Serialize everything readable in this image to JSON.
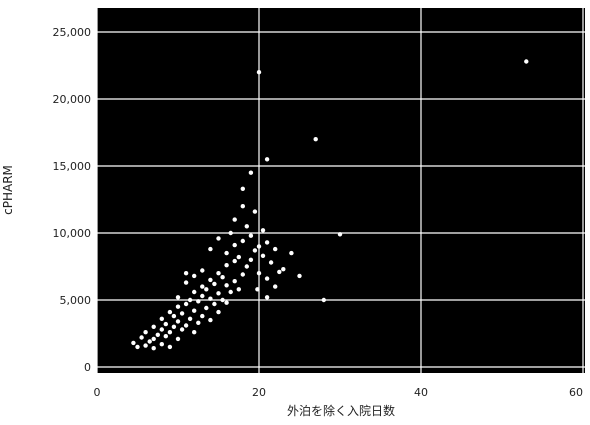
{
  "chart_data": {
    "type": "scatter",
    "title": "",
    "xlabel": "外泊を除く入院日数",
    "ylabel": "cPHARM",
    "xlim": [
      0,
      60
    ],
    "ylim": [
      0,
      25000
    ],
    "xticks": [
      0,
      20,
      40,
      60
    ],
    "xtick_labels": [
      "0",
      "20",
      "40",
      "60"
    ],
    "yticks": [
      0,
      5000,
      10000,
      15000,
      20000,
      25000
    ],
    "ytick_labels": [
      "0",
      "5,000",
      "10,000",
      "15,000",
      "20,000",
      "25,000"
    ],
    "grid": true,
    "colors": {
      "plot_background": "#000000",
      "gridline": "#ffffff",
      "point": "#ffffff"
    },
    "series": [
      {
        "points": [
          [
            4.5,
            1800
          ],
          [
            5,
            1500
          ],
          [
            5.5,
            2200
          ],
          [
            6,
            1600
          ],
          [
            6,
            2600
          ],
          [
            6.5,
            1900
          ],
          [
            7,
            1400
          ],
          [
            7,
            2100
          ],
          [
            7,
            3000
          ],
          [
            7.5,
            2400
          ],
          [
            8,
            1700
          ],
          [
            8,
            2800
          ],
          [
            8,
            3600
          ],
          [
            8.5,
            2300
          ],
          [
            8.5,
            3200
          ],
          [
            9,
            1500
          ],
          [
            9,
            2600
          ],
          [
            9,
            4100
          ],
          [
            9.5,
            3000
          ],
          [
            9.5,
            3800
          ],
          [
            10,
            2100
          ],
          [
            10,
            3400
          ],
          [
            10,
            4500
          ],
          [
            10,
            5200
          ],
          [
            10.5,
            2800
          ],
          [
            10.5,
            4000
          ],
          [
            11,
            3100
          ],
          [
            11,
            4700
          ],
          [
            11,
            6300
          ],
          [
            11,
            7000
          ],
          [
            11.5,
            3600
          ],
          [
            11.5,
            5000
          ],
          [
            12,
            2600
          ],
          [
            12,
            4200
          ],
          [
            12,
            5600
          ],
          [
            12,
            6800
          ],
          [
            12.5,
            3300
          ],
          [
            12.5,
            4900
          ],
          [
            13,
            3800
          ],
          [
            13,
            5300
          ],
          [
            13,
            6000
          ],
          [
            13,
            7200
          ],
          [
            13.5,
            4400
          ],
          [
            13.5,
            5800
          ],
          [
            14,
            3500
          ],
          [
            14,
            5100
          ],
          [
            14,
            6500
          ],
          [
            14,
            8800
          ],
          [
            14.5,
            4700
          ],
          [
            14.5,
            6200
          ],
          [
            15,
            4100
          ],
          [
            15,
            5500
          ],
          [
            15,
            7000
          ],
          [
            15,
            9600
          ],
          [
            15.5,
            5000
          ],
          [
            15.5,
            6700
          ],
          [
            16,
            4800
          ],
          [
            16,
            6100
          ],
          [
            16,
            7600
          ],
          [
            16,
            8500
          ],
          [
            16.5,
            5600
          ],
          [
            16.5,
            10000
          ],
          [
            17,
            6400
          ],
          [
            17,
            7900
          ],
          [
            17,
            9100
          ],
          [
            17,
            11000
          ],
          [
            17.5,
            5800
          ],
          [
            17.5,
            8200
          ],
          [
            18,
            6900
          ],
          [
            18,
            9400
          ],
          [
            18,
            12000
          ],
          [
            18,
            13300
          ],
          [
            18.5,
            7500
          ],
          [
            18.5,
            10500
          ],
          [
            19,
            8000
          ],
          [
            19,
            9800
          ],
          [
            19,
            14500
          ],
          [
            19.5,
            8700
          ],
          [
            19.5,
            11600
          ],
          [
            20,
            7000
          ],
          [
            20,
            9000
          ],
          [
            20,
            22000
          ],
          [
            20.5,
            8300
          ],
          [
            20.5,
            10200
          ],
          [
            21,
            6600
          ],
          [
            21,
            9300
          ],
          [
            21,
            5200
          ],
          [
            21.5,
            7800
          ],
          [
            22,
            6000
          ],
          [
            22,
            8800
          ],
          [
            23,
            7300
          ],
          [
            24,
            8500
          ],
          [
            25,
            6800
          ],
          [
            27,
            17000
          ],
          [
            28,
            5000
          ],
          [
            30,
            9900
          ],
          [
            53,
            22800
          ],
          [
            21,
            15500
          ],
          [
            19.8,
            5800
          ],
          [
            22.5,
            7100
          ]
        ]
      }
    ]
  }
}
